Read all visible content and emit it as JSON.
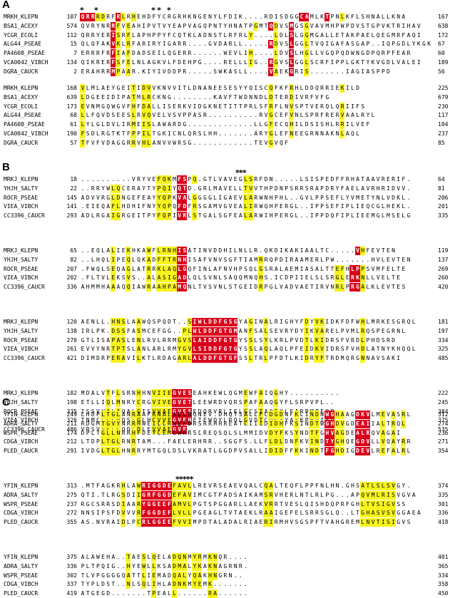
{
  "figure": {
    "panels": [
      {
        "label": "A",
        "blocks": [
          {
            "marks": "*     *                         * *   *",
            "rows": [
              {
                "name": "MRKH_KLEPN",
                "start": "107",
                "seq": "QRRRDRFRLRHEHDFYCRGRHKNGENYLFDIK....RDISDGGCAMLKTPNLKFLSHNALLKNA",
                "end": "167",
                "hl": "rrryy..ry.y................................rr...r..y..................."
              },
              {
                "name": "BSA1_ACEXY",
                "start": "574",
                "seq": "QVRYNRRFVEAHIPVTVYEAPVAGQPNTYHNATPGMTQDVSMGSGVAVMHPWPDVSTGPVKTRIHAV",
                "end": "638",
                "hl": "......ry.y........................y..ry..r..y.............."
              },
              {
                "name": "YCGR_ECOLI",
                "start": "112",
                "seq": "QRRYERISRFLAPHPPYFCQTKLADNSTLRFRLY....LDLSLGGMGALLETAKPAELQEGMRFAQI",
                "end": "172",
                "hl": "......ry.y.......................y...ry..r..y.............."
              },
              {
                "name": "ALG44_PSEAE",
                "start": "15",
                "seq": "QLQFAKVKLRFARIRYIGARR....GVDARLL.....RDVSLGGLTVQIGAFASGAP..IQPGDLYKGK",
                "end": "67",
                "hl": "......ry.y.......................y...ry..r..y.............."
              },
              {
                "name": "PA4608_PSEAE",
                "start": "7",
                "seq": "ERRRFRFIAFDADSEILQGERR......WEVLIH....LDVSLHGLLVGQPQDWNGDPQRPFEAR",
                "end": "60",
                "hl": "......ry.y.......................y...ry..r..y.............."
              },
              {
                "name": "VCA0042_VIBCH",
                "start": "134",
                "seq": "QIKRERFSFELNLAGKVLFDEHPG....RELLLIG..RGVSLGGLSCRFIPPLGKTYKVGDLVALEI",
                "end": "189",
                "hl": "......ry.y.......................y...ry..r..y.............."
              },
              {
                "name": "DGRA_CAUCR",
                "start": "2",
                "seq": "ERAHRRMPAAR.KIYIVDDPR.....SWKASLL....VAEKGRIS.......IAGIASPPD",
                "end": "56",
                "hl": "......ry.y.......................y...ry..r..y.............."
              }
            ]
          },
          {
            "marks": "",
            "rows": [
              {
                "name": "MRKH_KLEPN",
                "start": "168",
                "seq": "VLMLAEYGEITIDVVKNVVITLDNANEESESYYQISCQFKFRHLDDQRRIEKILD",
                "end": "225",
                "hl": "y.........y.yy.......................y...y.........y"
              },
              {
                "name": "BSA1_ACEXY",
                "start": "639",
                "seq": "LDGEEIDIPATMLRCKNG........KAVFTWDNNDLDTERDIVRFVFG",
                "end": "679",
                "hl": "y.........y.yy.......................y...y.........y"
              },
              {
                "name": "YCGR_ECOLI",
                "start": "173",
                "seq": "EVNMGQWGVFHFDALLISERKVIDGKNETITTPRLSFRFLNVSPTVERQLQRIIFS",
                "end": "230",
                "hl": "y.........y.yy.......................y...y.........y"
              },
              {
                "name": "ALG44_PSEAE",
                "start": "68",
                "seq": "LLFQVDSEESLRVQVELVSVPPASR..........RVGCEFVNLSPRFRERVAALRYL",
                "end": "117",
                "hl": "y.........y.yy.......................y...y.........y"
              },
              {
                "name": "PA4608_PSEAE",
                "start": "61",
                "seq": "LYLGLDVLIRMEISLAWARDG.............LLGFECQHILDSISHLRRILVEF",
                "end": "104",
                "hl": "y.........y.yy.......................y...y.........y"
              },
              {
                "name": "VCA0042_VIBCH",
                "start": "190",
                "seq": "FSDLRGTKTFPPILTGKICNLQRSLHH.......ARYGLEFNEEGRNNAKNLAQL",
                "end": "237",
                "hl": "y.........y.yy.......................y...y.........y"
              },
              {
                "name": "DGRA_CAUCR",
                "start": "57",
                "seq": "TFVFVDAGGRRVHLANVVWRSG............TEVGVQF",
                "end": "85",
                "hl": "y.........y.yy.......................y...y"
              }
            ]
          }
        ]
      },
      {
        "label": "B",
        "blocks": [
          {
            "marks": "***",
            "rows": [
              {
                "name": "MRKJ_KLEPN",
                "start": "18",
                "seq": "..........VRYVEFQKMFSPQ.GTLVAVEGLSRFDN.....LSISPEDFFRHATAAVRERIF.",
                "end": "64",
                "hl": "......yy.......yyy.rr.y.........yy......"
              },
              {
                "name": "YHJH_SALTY",
                "start": "22",
                "seq": "..RRYWLQCERAYTYPQIYQTD.GRLMAVELLTVVTHPDNPSRRSRAPDRYFAELAVRHRIDVV.",
                "end": "81",
                "hl": "......yy.......yyy.rr.y.........yy......"
              },
              {
                "name": "ROCR_PSEAE",
                "start": "145",
                "seq": "ADVVRGLDNGEFEAYYQPKVALGGGGLIGAEVLARWNHPHL..GVLPPSEFLYVMETYNLVDKL.",
                "end": "206",
                "hl": "......yy.......yyy.rr.y.........yy......"
              },
              {
                "name": "VIEA_VIBCH",
                "start": "141",
                "seq": ".EIEQAFLHDHIFNYYQPQFDFRSGAMVGVEALIRWQHPERGL..IPPSEFIPLIEQCGLHEKL.",
                "end": "201",
                "hl": "......yy.......yyy.rr.y.........yy......"
              },
              {
                "name": "CC3396_CAUCR",
                "start": "293",
                "seq": "ADLRGAIGRGEITPYFQPIVRLSTGALSGFEALARWIHPERGL..IPPDQFIPLIEEMGLMSELG",
                "end": "335",
                "hl": "......yy.......yyy.rr.y.........yy......"
              }
            ]
          },
          {
            "marks": "",
            "rows": [
              {
                "name": "MRKJ_KLEPN",
                "start": "65",
                "seq": "..EQLALIEKHKAWFLRNHISATINVDDHILNLLR.QKDIKAKIAALTC.....VHFEVTEN",
                "end": "119",
                "hl": "......y..y...y.yyyyrr..............y..............yy.rry"
              },
              {
                "name": "YHJH_SALTY",
                "start": "82",
                "seq": "..LHQLIPEQLQKADFFTRNHISAFVNVSGFTIAMRRQPDIRAAMERLPW.......HVLEVTEN",
                "end": "137",
                "hl": "......y..y...y.yyyyrr..............y..............yy.rry"
              },
              {
                "name": "ROCR_PSEAE",
                "start": "207",
                "seq": ".FWQLSEQAGLATRRKLAQLGQFINLAFNVHPSQLGSRALAEMIASALTTEFHLPPSVMFELTE",
                "end": "269",
                "hl": "......y..y...y.yyyyrr..............y..............yy.rry"
              },
              {
                "name": "VIEA_VIBCH",
                "start": "202",
                "seq": ".FLTVLEKSVS..ALASIGADLQLSVNLSAQQMNQHS.ICDPIIELSLSRGLERKNLLVELTE",
                "end": "260",
                "hl": "......y..y...y.yyyyrr..............y..............yy.rry"
              },
              {
                "name": "CC3396_CAUCR",
                "start": "336",
                "seq": "AHMMHAAAQQIAWRAAHPAMQNLTVSVNLSTGEIDRPGLVADVAETIRVNRLPRGALKLEVTES",
                "end": "420",
                "hl": "......y..y...y.yyyyrr..............y..............yy.rry"
              }
            ]
          },
          {
            "marks": "",
            "rows": [
              {
                "name": "MRKJ_KLEPN",
                "start": "120",
                "seq": "AENLL.HNSLAAWQSPQDT..SIWLDDFGSGYAGINALRIGHYFDYVKIDKFDFWHLMRKESGRQL",
                "end": "181",
                "hl": "......yyy..y.......yyyrrrrrrrrr..y..y.......y.yy.......y"
              },
              {
                "name": "YHJH_SALTY",
                "start": "138",
                "seq": "IRLPK.DSSFASMCEFGG..PLWLDDFGTGMANFSALSEVRYDYIKVARELPVMLRQSPEGRNL",
                "end": "197",
                "hl": "......yyy..y.......yyyrrrrrrrrr..y..y.......y.yy.......y"
              },
              {
                "name": "ROCR_PSEAE",
                "start": "270",
                "seq": "GTLISAPASLENLRVLRRMGVSLAIDDFGTGYSSLSYLKRLPVDTLKIDRSFVRDLPHDSRD",
                "end": "334",
                "hl": "......yyy..y.......yyyrrrrrrrrr..y..y.......y.yy.......y"
              },
              {
                "name": "VIEA_VIBCH",
                "start": "261",
                "seq": "EVVYNRTPTSLANLARLRMYGVLSIDDFGTGYSSLAQLAQLPFEIDKVIDRSFVHDLATNYKHQQL",
                "end": "325",
                "hl": "......yyy..y.......yyyrrrrrrrrr..y..y.......y.yy.......y"
              },
              {
                "name": "CC3396_CAUCR",
                "start": "421",
                "seq": "DIMDRPERAVILKTLRDAGARLALDDFGTGFSSLTRLPFDTLKIDRYFTRDMQRGNNAVSAKI",
                "end": "485",
                "hl": "......yyy..y.......yyyrrrrrrrrr..y..y.......y.yy.......y"
              }
            ]
          },
          {
            "marks": "",
            "rows": [
              {
                "name": "MRKJ_KLEPN",
                "start": "182",
                "seq": "MDALVTFLSRNHHNVIIEGVESEAHKEWLQGMEWFAIQGHY..........",
                "end": "222",
                "hl": ".....y.y...y..yyyyrrrr..........y..y..y"
              },
              {
                "name": "YHJH_SALTY",
                "start": "198",
                "seq": "ETLLIQLMNRYCRGVIVEGVETLEEWRDVQRSPAFAAQGYFLSRPVPL..",
                "end": "245",
                "hl": ".....y.y...y..yyyyrrrr..........y..y..y"
              },
              {
                "name": "ROCR_PSEAE",
                "start": "335",
                "seq": "ISSVVALAQALGISVVAEGVESEDQRVRLIELGCSIAQGYLFARPMPEQP",
                "end": "384",
                "hl": ".....y.y...y..yyyyrrrr..........y..y..y"
              },
              {
                "name": "VIEA_VIBCH",
                "start": "326",
                "seq": "TNMCLLLAQSLGLHCVVEGVENETEWQYLRQLGVDTCQGYYAAKPMPIAQ",
                "end": "375",
                "hl": ".....y.y...y..yyyyrrrr..........y..y..y"
              },
              {
                "name": "CC3396_CAUCR",
                "start": "486",
                "seq": "VRSVVKLGQDLDLEVVAEGVE....",
                "end": "535",
                "hl": ".....y.y...y..yyyyrrrr....................."
              }
            ]
          }
        ]
      },
      {
        "label": "C",
        "blocks": [
          {
            "marks": "",
            "rows": [
              {
                "name": "YFIN_KLEPN",
                "start": "249",
                "seq": "LHDPLTGLANRAAFRNALAELMQNEV.DHQTSALLFLDGDNFKLINDNWGHAAGDKVLMEVASRL",
                "end": "312",
                "hl": "....yyyy..y..........................yyy..y..yy.rryy..rrr..y.y.y..y"
              },
              {
                "name": "ADRA_SALTY",
                "start": "211",
                "seq": "RDGMTGVYNRRHWEILLRNEFDRSRRHHREATLIIIDIDHFKSINDTWGHDVGDEAIIALTRQL",
                "end": "274",
                "hl": "....yyyy..y..........................yyy..y..yy.rryy..rrr..y.y.y..y"
              },
              {
                "name": "WSPR_PSEAE",
                "start": "174",
                "seq": "DPLTGLLNRRHFDEYLEMEWRRSLREQSQLSLMMIDVDYFKSYNDTFGHVAGDEALRQVAGAI",
                "end": "236",
                "hl": "....yyyy..y..........................yyy..y..yy.rryy..rrr..y.y.y..y"
              },
              {
                "name": "CDGA_VIBCH",
                "start": "212",
                "seq": "LTDPLTGLRNRTAM...FAELERHRR..SGGFS.LLFLDLDNFKVINDTYGHQEGDVLLVQAYRR",
                "end": "271",
                "hl": "....yyyy..y..........................yyy..y..yy.rryy..rrr..y.y.y..y"
              },
              {
                "name": "PLED_CAUCR",
                "start": "291",
                "seq": "IVDGLTGLHNRRYMTGQLDSLVKRATLGGDPVSALLIDIDFFKKINDTFGHDIGDEVLREFALRL",
                "end": "354",
                "hl": "....yyyy..y..........................yyy..y..yy.rryy..rrr..y.y.y..y"
              }
            ]
          },
          {
            "marks": "*****",
            "rows": [
              {
                "name": "YFIN_KLEPN",
                "start": "313",
                "seq": ".MTFAGKRHLAWRIGGDEFAVLLREVRSEAEVQALCQALTEQFLPPFNLHN.GHSATLSLSVGY.",
                "end": "374",
                "hl": "........y..yrrrrrryyyy..............yy.................yyyyyyy."
              },
              {
                "name": "ADRA_SALTY",
                "start": "275",
                "seq": "QTI.TLRGSDIIGRFGGDEFAVIMCGTPADSAIKAMSRVHERLNTLRLPG...APQVMLRISVGVA",
                "end": "335",
                "hl": "........y..yrrrrrryyyy..............yy.................yyyyyyy."
              },
              {
                "name": "WSPR_PSEAE",
                "start": "237",
                "seq": "RGCSRRSDIAARYGGEEFAMVLPGTSPGGARLLAEKVRRTVESLQISHDQPRFGHLTVSIGVSS",
                "end": "301",
                "hl": "........y..yrrrrrryyyy..............yy.................yyyyyyy."
              },
              {
                "name": "CDGA_VIBCH",
                "start": "272",
                "seq": "NNSIPSFDVVVRFGGDEFLVLLPGEAGLTVTAEKLRAAIGEFELSRRSGLQ..LTGHASVSVGGAEA",
                "end": "336",
                "hl": "........y..yrrrrrryyyy..............yy.................yyyyyyy."
              },
              {
                "name": "PLED_CAUCR",
                "start": "355",
                "seq": "AS.NVRAIDLPCRLGGEEFVVIMPDTALADALRIAERIRMHVSGSPFTVAHGREMLNVTISIGVS",
                "end": "418",
                "hl": "........y..yrrrrrryyyy..............yy.................yyyyyyy."
              }
            ]
          },
          {
            "marks": "",
            "rows": [
              {
                "name": "YFIN_KLEPN",
                "start": "375",
                "seq": "ALAWEHA..TAESLQELADQNMYRMKNQR....",
                "end": "401",
                "hl": ".........y..y.y...yyy.yy.yy"
              },
              {
                "name": "ADRA_SALTY",
                "start": "336",
                "seq": "PLTPQIG..HYEWLLKSADMALYKAKNAGRNR.",
                "end": "365",
                "hl": ".........y..y.y...yyy.yy.yy"
              },
              {
                "name": "WSPR_PSEAE",
                "start": "302",
                "seq": "TLVPGGGGQATTLIEMADQALYQAKHNGRN..",
                "end": "334",
                "hl": ".........y..y.y...yyy.yy.yy"
              },
              {
                "name": "CDGA_VIBCH",
                "start": "337",
                "seq": "TYPLDST..NLSQLIHLADNKMYEMK.......",
                "end": "358",
                "hl": ".........y..y.y...yyy.yy.yy"
              },
              {
                "name": "PLED_CAUCR",
                "start": "419",
                "seq": "ATGEGD.......TPEALL......RA......",
                "end": "450",
                "hl": ".........y..y.y...yyy.yy.yy"
              }
            ]
          }
        ]
      }
    ]
  }
}
